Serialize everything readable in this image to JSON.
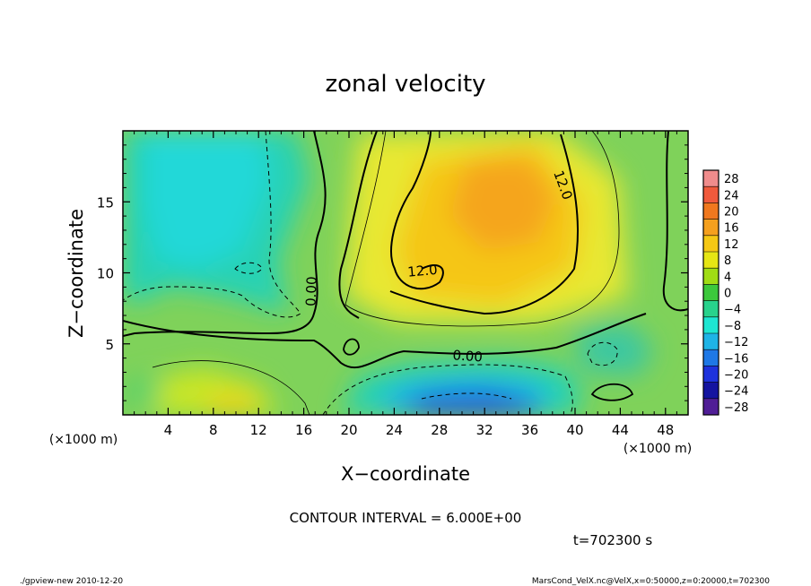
{
  "chart_data": {
    "type": "heatmap",
    "title": "zonal velocity",
    "xlabel": "X−coordinate",
    "ylabel": "Z−coordinate",
    "x_unit_left": "(×1000 m)",
    "x_unit_right": "(×1000 m)",
    "xlim": [
      0,
      50
    ],
    "ylim": [
      0,
      20
    ],
    "x_ticks": [
      4,
      8,
      12,
      16,
      20,
      24,
      28,
      32,
      36,
      40,
      44,
      48
    ],
    "y_ticks": [
      5,
      10,
      15
    ],
    "colorbar": {
      "levels": [
        28,
        24,
        20,
        16,
        12,
        8,
        4,
        0,
        -4,
        -8,
        -12,
        -16,
        -20,
        -24,
        -28
      ],
      "labels": [
        "28",
        "24",
        "20",
        "16",
        "12",
        "8",
        "4",
        "0",
        "−4",
        "−8",
        "−12",
        "−16",
        "−20",
        "−24",
        "−28"
      ],
      "colors": [
        "#f08c8c",
        "#f05a3c",
        "#f0781e",
        "#f5a01e",
        "#f5c814",
        "#e6e614",
        "#a0dc14",
        "#3cc83c",
        "#28d28c",
        "#1ee6d2",
        "#1eb4e6",
        "#1e78e6",
        "#1e32dc",
        "#1414a0",
        "#501e96"
      ]
    },
    "contours": [
      {
        "label": "12.0",
        "x": 26.5,
        "z": 10.2,
        "rotate": -5
      },
      {
        "label": "12.0",
        "x": 39.0,
        "z": 16.2,
        "rotate": 70
      },
      {
        "label": "0.00",
        "x": 30.5,
        "z": 4.2,
        "rotate": 4
      },
      {
        "label": "0.00",
        "x": 16.6,
        "z": 8.7,
        "rotate": -88
      }
    ],
    "contour_interval_text": "CONTOUR INTERVAL = 6.000E+00",
    "time_text": "t=702300 s"
  },
  "footer": {
    "left": "./gpview-new  2010-12-20",
    "right": "MarsCond_VelX.nc@VelX,x=0:50000,z=0:20000,t=702300"
  }
}
